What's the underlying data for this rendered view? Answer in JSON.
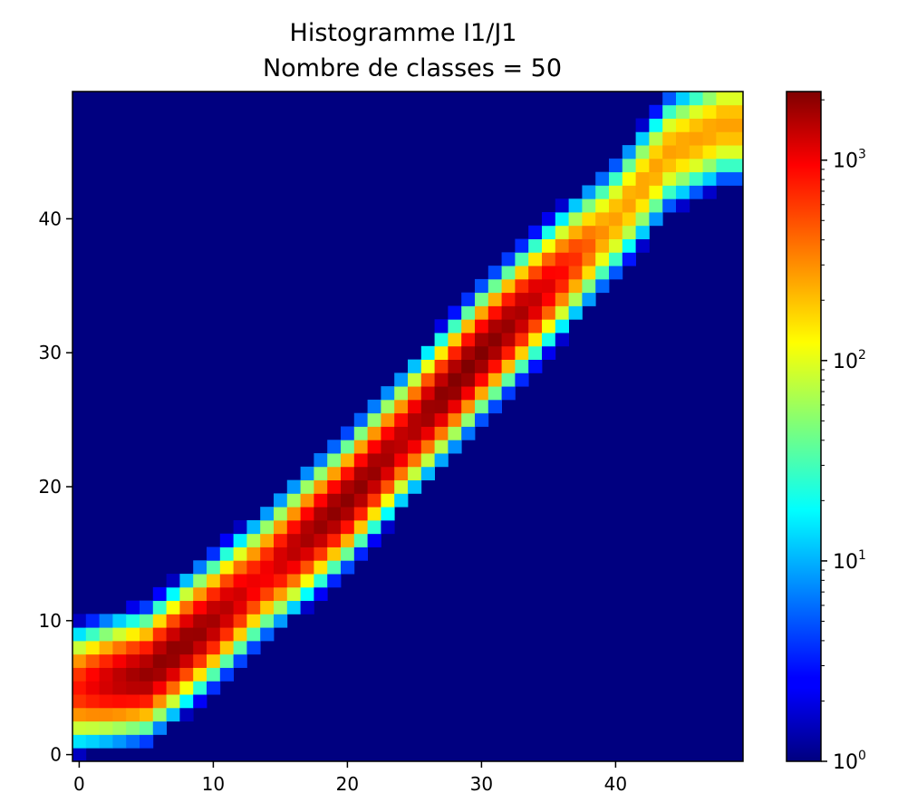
{
  "chart_data": {
    "type": "heatmap",
    "title_line1": "Histogramme I1/J1",
    "title_line2": "Nombre de classes = 50",
    "xlabel": "",
    "ylabel": "",
    "bins": 50,
    "xlim": [
      -0.5,
      49.5
    ],
    "ylim": [
      -0.5,
      49.5
    ],
    "x_ticks": [
      0,
      10,
      20,
      30,
      40
    ],
    "y_ticks": [
      0,
      10,
      20,
      30,
      40
    ],
    "x_tick_labels": [
      "0",
      "10",
      "20",
      "30",
      "40"
    ],
    "y_tick_labels": [
      "0",
      "10",
      "20",
      "30",
      "40"
    ],
    "colormap": "jet",
    "colorbar": {
      "scale": "log",
      "range": [
        1,
        2200
      ],
      "ticks": [
        {
          "value": 1,
          "base": "10",
          "exp": "0"
        },
        {
          "value": 10,
          "base": "10",
          "exp": "1"
        },
        {
          "value": 100,
          "base": "10",
          "exp": "2"
        },
        {
          "value": 1000,
          "base": "10",
          "exp": "3"
        }
      ]
    },
    "background_value": 1,
    "description_of_distribution": {
      "ridge_path": [
        [
          0,
          5
        ],
        [
          5,
          6
        ],
        [
          10,
          10
        ],
        [
          20,
          19
        ],
        [
          30,
          30
        ],
        [
          40,
          40
        ],
        [
          44,
          45
        ],
        [
          48,
          47
        ]
      ],
      "peak_counts": [
        {
          "x": 7,
          "y": 7,
          "count": 2000
        },
        {
          "x": 20,
          "y": 20,
          "count": 2000
        },
        {
          "x": 29,
          "y": 30,
          "count": 2200
        }
      ],
      "band_halfwidth": 3.0
    },
    "colors": {
      "axes_edge": "#000000",
      "background": "#ffffff"
    }
  }
}
